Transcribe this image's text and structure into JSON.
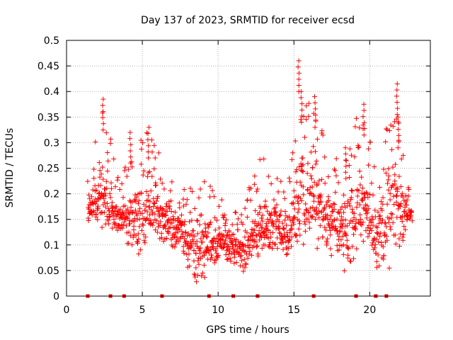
{
  "chart_data": {
    "type": "scatter",
    "title": "Day 137 of 2023, SRMTID for receiver ecsd",
    "xlabel": "GPS time / hours",
    "ylabel": "SRMTID / TECUs",
    "xlim": [
      0,
      24
    ],
    "ylim": [
      0,
      0.5
    ],
    "grid": true,
    "marker": "+",
    "color": "#ff0000",
    "x_ticks": [
      0,
      5,
      10,
      15,
      20
    ],
    "x_tick_labels": [
      "0",
      "5",
      "10",
      "15",
      "20"
    ],
    "y_ticks": [
      0,
      0.05,
      0.1,
      0.15,
      0.2,
      0.25,
      0.3,
      0.35,
      0.4,
      0.45,
      0.5
    ],
    "y_tick_labels": [
      "0",
      "0.05",
      "0.1",
      "0.15",
      "0.2",
      "0.25",
      "0.3",
      "0.35",
      "0.4",
      "0.45",
      "0.5"
    ],
    "envelope": {
      "description": "approximate per-hour median and upper spread of the dense point cloud (hours 1.4 to 22.8)",
      "hours": [
        1.5,
        2.5,
        3.5,
        4.5,
        5.5,
        6.5,
        7.5,
        8.5,
        9.5,
        10.5,
        11.5,
        12.5,
        13.5,
        14.5,
        15.5,
        16.5,
        17.5,
        18.5,
        19.5,
        20.5,
        21.5,
        22.5
      ],
      "median": [
        0.17,
        0.19,
        0.15,
        0.14,
        0.17,
        0.15,
        0.12,
        0.09,
        0.1,
        0.1,
        0.08,
        0.12,
        0.14,
        0.11,
        0.2,
        0.17,
        0.13,
        0.12,
        0.18,
        0.11,
        0.15,
        0.16
      ],
      "upper": [
        0.25,
        0.38,
        0.22,
        0.31,
        0.33,
        0.25,
        0.2,
        0.25,
        0.24,
        0.18,
        0.16,
        0.27,
        0.28,
        0.2,
        0.46,
        0.38,
        0.25,
        0.33,
        0.37,
        0.25,
        0.41,
        0.23
      ]
    },
    "peaks": [
      {
        "x": 2.4,
        "y": 0.385
      },
      {
        "x": 4.2,
        "y": 0.32
      },
      {
        "x": 5.4,
        "y": 0.33
      },
      {
        "x": 15.3,
        "y": 0.46
      },
      {
        "x": 15.5,
        "y": 0.4
      },
      {
        "x": 16.4,
        "y": 0.39
      },
      {
        "x": 18.4,
        "y": 0.29
      },
      {
        "x": 19.6,
        "y": 0.375
      },
      {
        "x": 21.8,
        "y": 0.415
      },
      {
        "x": 21.9,
        "y": 0.35
      }
    ],
    "zero_markers_x": [
      1.4,
      2.9,
      3.8,
      6.3,
      9.4,
      11.0,
      12.6,
      16.3,
      19.1,
      20.4,
      21.1
    ]
  }
}
